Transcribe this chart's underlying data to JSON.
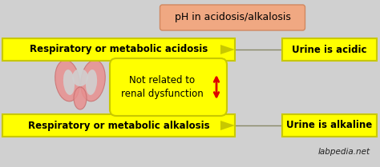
{
  "bg_color": "#d0d0d0",
  "title_text": "pH in acidosis/alkalosis",
  "title_box_color": "#f0a882",
  "title_box_edge": "#d08860",
  "top_label": "Respiratory or metabolic acidosis",
  "bottom_label": "Respiratory or metabolic alkalosis",
  "right_top_label": "Urine is acidic",
  "right_bottom_label": "Urine is alkaline",
  "middle_label_line1": "Not related to",
  "middle_label_line2": "renal dysfunction",
  "yellow_box_color": "#ffff00",
  "yellow_box_edge": "#c8c800",
  "watermark": "labpedia.net",
  "arrow_color": "#dd0000",
  "connector_color": "#888866",
  "kidney_color": "#e89090",
  "kidney_edge": "#c87070"
}
